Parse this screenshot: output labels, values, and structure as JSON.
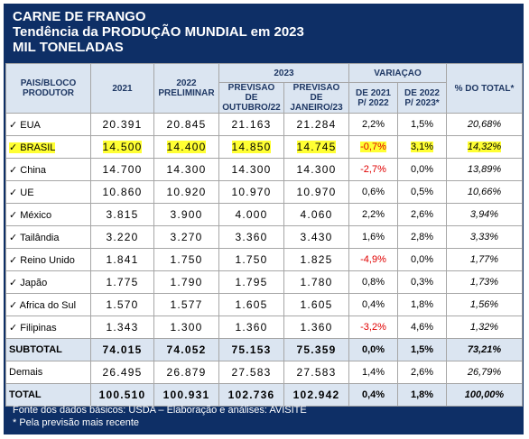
{
  "header": {
    "title": "CARNE DE FRANGO",
    "subtitle": "Tendência da PRODUÇÃO MUNDIAL em 2023",
    "unit": "MIL TONELADAS"
  },
  "table": {
    "head_top": [
      "PAIS/BLOCO PRODUTOR",
      "2021",
      "2022 PRELIMINAR",
      "2023",
      "VARIAÇAO",
      "% DO TOTAL*"
    ],
    "head_sub": [
      "PREVISAO DE OUTUBRO/22",
      "PREVISAO DE JANEIRO/23",
      "DE 2021 P/ 2022",
      "DE 2022 P/ 2023*"
    ],
    "rows": [
      [
        "✓ EUA",
        "20.391",
        "20.845",
        "21.163",
        "21.284",
        "2,2%",
        "1,5%",
        "20,68%"
      ],
      [
        "✓ BRASIL",
        "14.500",
        "14.400",
        "14.850",
        "14.745",
        "-0,7%",
        "3,1%",
        "14,32%"
      ],
      [
        "✓ China",
        "14.700",
        "14.300",
        "14.300",
        "14.300",
        "-2,7%",
        "0,0%",
        "13,89%"
      ],
      [
        "✓ UE",
        "10.860",
        "10.920",
        "10.970",
        "10.970",
        "0,6%",
        "0,5%",
        "10,66%"
      ],
      [
        "✓ México",
        "3.815",
        "3.900",
        "4.000",
        "4.060",
        "2,2%",
        "2,6%",
        "3,94%"
      ],
      [
        "✓ Tailândia",
        "3.220",
        "3.270",
        "3.360",
        "3.430",
        "1,6%",
        "2,8%",
        "3,33%"
      ],
      [
        "✓ Reino Unido",
        "1.841",
        "1.750",
        "1.750",
        "1.825",
        "-4,9%",
        "0,0%",
        "1,77%"
      ],
      [
        "✓ Japão",
        "1.775",
        "1.790",
        "1.795",
        "1.780",
        "0,8%",
        "0,3%",
        "1,73%"
      ],
      [
        "✓ Africa do Sul",
        "1.570",
        "1.577",
        "1.605",
        "1.605",
        "0,4%",
        "1,8%",
        "1,56%"
      ],
      [
        "✓ Filipinas",
        "1.343",
        "1.300",
        "1.360",
        "1.360",
        "-3,2%",
        "4,6%",
        "1,32%"
      ],
      [
        "SUBTOTAL",
        "74.015",
        "74.052",
        "75.153",
        "75.359",
        "0,0%",
        "1,5%",
        "73,21%"
      ],
      [
        "Demais",
        "26.495",
        "26.879",
        "27.583",
        "27.583",
        "1,4%",
        "2,6%",
        "26,79%"
      ],
      [
        "TOTAL",
        "100.510",
        "100.931",
        "102.736",
        "102.942",
        "0,4%",
        "1,8%",
        "100,00%"
      ]
    ],
    "highlight_row": 1,
    "bold_rows": [
      10,
      12
    ]
  },
  "footer": {
    "source": "Fonte dos dados básicos: USDA – Elaboração e análises: AVISITE",
    "note": "* Pela previsão mais recente"
  }
}
